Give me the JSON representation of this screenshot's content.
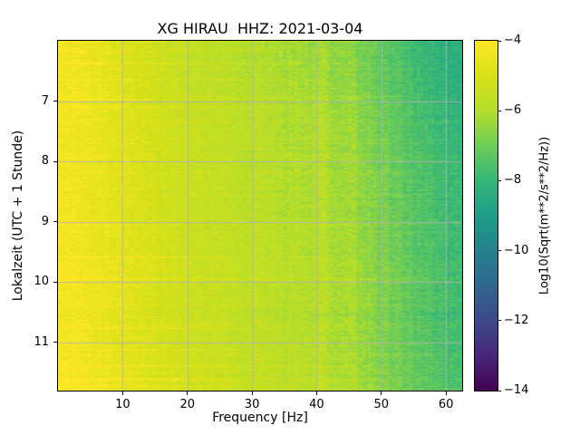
{
  "figure": {
    "background": "#ffffff"
  },
  "chart_data": {
    "type": "heatmap",
    "title": "XG HIRAU  HHZ: 2021-03-04",
    "xlabel": "Frequency [Hz]",
    "ylabel": "Lokalzeit (UTC + 1 Stunde)",
    "colorbar_label": "Log10(Sqrt(m**2/s**2/Hz))",
    "colormap": "viridis",
    "grid": true,
    "xlim": [
      0,
      62.5
    ],
    "ylim_top_to_bottom": [
      6.0,
      11.8
    ],
    "x_ticks": [
      10,
      20,
      30,
      40,
      50,
      60
    ],
    "y_ticks": [
      7,
      8,
      9,
      10,
      11
    ],
    "colorbar_lim": [
      -14,
      -4
    ],
    "colorbar_ticks": [
      -4,
      -6,
      -8,
      -10,
      -12,
      -14
    ],
    "freq_bins": [
      0,
      5,
      10,
      15,
      20,
      25,
      30,
      35,
      40,
      45,
      50,
      55,
      62.5
    ],
    "time_bins": [
      6.0,
      6.5,
      7.0,
      7.5,
      8.0,
      8.5,
      9.0,
      9.5,
      10.0,
      10.5,
      11.0,
      11.8
    ],
    "values": [
      [
        -4.2,
        -4.5,
        -4.9,
        -5.3,
        -5.6,
        -5.8,
        -6.0,
        -6.2,
        -6.4,
        -6.6,
        -7.2,
        -7.8,
        -8.5
      ],
      [
        -4.2,
        -4.4,
        -4.8,
        -5.2,
        -5.5,
        -5.7,
        -5.9,
        -6.1,
        -6.3,
        -6.5,
        -7.1,
        -7.7,
        -8.4
      ],
      [
        -4.1,
        -4.4,
        -4.8,
        -5.2,
        -5.5,
        -5.7,
        -5.9,
        -6.0,
        -6.2,
        -6.4,
        -7.0,
        -7.6,
        -8.3
      ],
      [
        -4.2,
        -4.5,
        -4.8,
        -5.1,
        -5.4,
        -5.6,
        -5.8,
        -6.0,
        -6.1,
        -6.3,
        -6.9,
        -7.5,
        -8.1
      ],
      [
        -4.2,
        -4.4,
        -4.7,
        -5.1,
        -5.4,
        -5.6,
        -5.8,
        -5.9,
        -6.1,
        -6.3,
        -6.8,
        -7.4,
        -8.0
      ],
      [
        -4.2,
        -4.5,
        -4.8,
        -5.2,
        -5.4,
        -5.6,
        -5.8,
        -6.0,
        -6.1,
        -6.3,
        -6.8,
        -7.4,
        -8.0
      ],
      [
        -4.1,
        -4.4,
        -4.7,
        -5.1,
        -5.4,
        -5.6,
        -5.7,
        -5.9,
        -6.0,
        -6.2,
        -6.7,
        -7.3,
        -7.9
      ],
      [
        -4.1,
        -4.4,
        -4.7,
        -5.0,
        -5.3,
        -5.5,
        -5.7,
        -5.8,
        -6.0,
        -6.2,
        -6.7,
        -7.3,
        -7.9
      ],
      [
        -4.1,
        -4.3,
        -4.6,
        -5.0,
        -5.3,
        -5.5,
        -5.6,
        -5.8,
        -5.9,
        -6.1,
        -6.6,
        -7.2,
        -7.8
      ],
      [
        -4.2,
        -4.4,
        -4.7,
        -5.1,
        -5.3,
        -5.5,
        -5.7,
        -5.9,
        -6.0,
        -6.2,
        -6.7,
        -7.3,
        -7.9
      ],
      [
        -4.1,
        -4.4,
        -4.7,
        -5.0,
        -5.3,
        -5.5,
        -5.7,
        -5.8,
        -6.0,
        -6.2,
        -6.7,
        -7.2,
        -7.8
      ],
      [
        -4.1,
        -4.3,
        -4.6,
        -5.0,
        -5.2,
        -5.4,
        -5.6,
        -5.8,
        -5.9,
        -6.1,
        -6.6,
        -7.1,
        -7.7
      ]
    ],
    "spectral_lines": [
      {
        "freq": 25.5,
        "boost": 0.3
      },
      {
        "freq": 31.0,
        "boost": 0.35
      },
      {
        "freq": 41.0,
        "boost": 0.5
      },
      {
        "freq": 45.5,
        "boost": 0.3
      }
    ]
  }
}
